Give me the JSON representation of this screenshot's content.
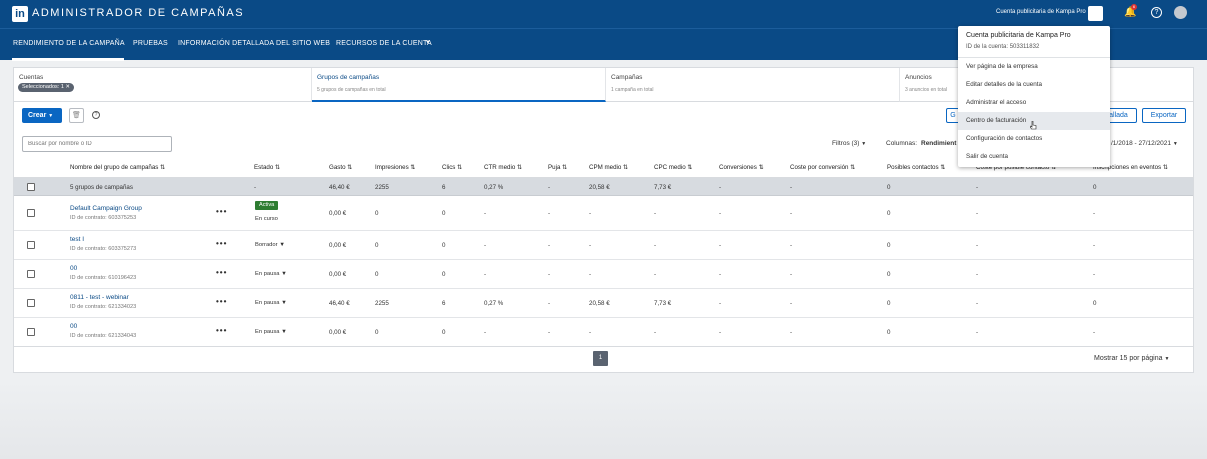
{
  "header": {
    "logo": "in",
    "app_title": "ADMINISTRADOR DE CAMPAÑAS",
    "account_name": "Cuenta publicitaria de Kampa Pro",
    "notification_count": "6"
  },
  "nav": {
    "items": [
      "RENDIMIENTO DE LA CAMPAÑA",
      "PRUEBAS",
      "INFORMACIÓN DETALLADA DEL SITIO WEB",
      "RECURSOS DE LA CUENTA"
    ]
  },
  "breadcrumbs": [
    {
      "title": "Cuentas",
      "chip": "Seleccionados: 1 ✕"
    },
    {
      "title": "Grupos de campañas",
      "sub": "5 grupos de campañas en total"
    },
    {
      "title": "Campañas",
      "sub": "1 campaña en total"
    },
    {
      "title": "Anuncios",
      "sub": "3 anuncios en total"
    }
  ],
  "toolbar": {
    "create_label": "Crear",
    "btn_g": "G",
    "btn_detallada": "tallada",
    "btn_export": "Exportar",
    "search_placeholder": "Buscar por nombre o ID",
    "filters_label": "Filtros (3)",
    "columns_label": "Columnas:",
    "columns_value": "Rendimient",
    "date_range": "/1/2018 - 27/12/2021"
  },
  "table": {
    "headers": [
      "Nombre del grupo de campañas",
      "Estado",
      "Gasto",
      "Impresiones",
      "Clics",
      "CTR medio",
      "Puja",
      "CPM medio",
      "CPC medio",
      "Conversiones",
      "Coste por conversión",
      "Posibles contactos",
      "Coste por posible contacto",
      "Inscripciones en eventos"
    ],
    "summary": {
      "name": "5 grupos de campañas",
      "estado": "-",
      "gasto": "46,40 €",
      "impresiones": "2255",
      "clics": "6",
      "ctr": "0,27 %",
      "puja": "-",
      "cpm": "20,58 €",
      "cpc": "7,73 €",
      "conversiones": "-",
      "coste_conv": "-",
      "posibles": "0",
      "coste_posible": "-",
      "inscripciones": "0"
    },
    "rows": [
      {
        "name": "Default Campaign Group",
        "contract": "ID de contrato: 603375253",
        "badge": "Activa",
        "status": "En curso",
        "gasto": "0,00 €",
        "impresiones": "0",
        "clics": "0",
        "ctr": "-",
        "puja": "-",
        "cpm": "-",
        "cpc": "-",
        "conversiones": "-",
        "coste_conv": "-",
        "posibles": "0",
        "coste_posible": "-",
        "inscripciones": "-"
      },
      {
        "name": "test I",
        "contract": "ID de contrato: 603375273",
        "status": "Borrador",
        "gasto": "0,00 €",
        "impresiones": "0",
        "clics": "0",
        "ctr": "-",
        "puja": "-",
        "cpm": "-",
        "cpc": "-",
        "conversiones": "-",
        "coste_conv": "-",
        "posibles": "0",
        "coste_posible": "-",
        "inscripciones": "-"
      },
      {
        "name": "00",
        "contract": "ID de contrato: 610196423",
        "status": "En pausa",
        "gasto": "0,00 €",
        "impresiones": "0",
        "clics": "0",
        "ctr": "-",
        "puja": "-",
        "cpm": "-",
        "cpc": "-",
        "conversiones": "-",
        "coste_conv": "-",
        "posibles": "0",
        "coste_posible": "-",
        "inscripciones": "-"
      },
      {
        "name": "0811 - test - webinar",
        "contract": "ID de contrato: 621334023",
        "status": "En pausa",
        "gasto": "46,40 €",
        "impresiones": "2255",
        "clics": "6",
        "ctr": "0,27 %",
        "puja": "-",
        "cpm": "20,58 €",
        "cpc": "7,73 €",
        "conversiones": "-",
        "coste_conv": "-",
        "posibles": "0",
        "coste_posible": "-",
        "inscripciones": "0"
      },
      {
        "name": "00",
        "contract": "ID de contrato: 621334043",
        "status": "En pausa",
        "gasto": "0,00 €",
        "impresiones": "0",
        "clics": "0",
        "ctr": "-",
        "puja": "-",
        "cpm": "-",
        "cpc": "-",
        "conversiones": "-",
        "coste_conv": "-",
        "posibles": "0",
        "coste_posible": "-",
        "inscripciones": "-"
      }
    ]
  },
  "pagination": {
    "page": "1",
    "per_page": "Mostrar 15 por página"
  },
  "dropdown": {
    "title": "Cuenta publicitaria de Kampa Pro",
    "account_id": "ID de la cuenta: 503311832",
    "items": [
      "Ver página de la empresa",
      "Editar detalles de la cuenta",
      "Administrar el acceso",
      "Centro de facturación",
      "Configuración de contactos",
      "Salir de cuenta"
    ]
  }
}
